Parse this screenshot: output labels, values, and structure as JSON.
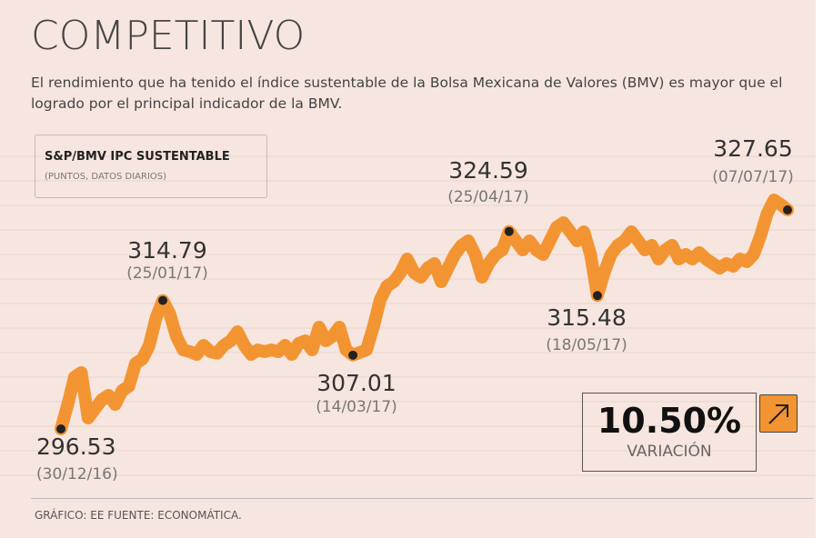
{
  "chart_data": {
    "type": "line",
    "title": "COMPETITIVO",
    "subtitle": "El rendimiento que ha tenido el índice sustentable de la Bolsa Mexicana de Valores (BMV) es mayor que el logrado por el principal indicador de la BMV.",
    "legend_subtitle": "(PUNTOS, DATOS DIARIOS)",
    "series": [
      {
        "name": "S&P/BMV IPC SUSTENTABLE",
        "color": "#f39433",
        "values": [
          296.53,
          300.02,
          303.89,
          304.54,
          298.08,
          299.37,
          300.66,
          301.31,
          300.02,
          301.95,
          302.6,
          305.83,
          306.47,
          308.41,
          312.28,
          314.79,
          312.93,
          309.7,
          307.76,
          307.5,
          307.12,
          308.41,
          307.5,
          307.3,
          308.41,
          309.06,
          310.35,
          308.41,
          307.12,
          307.76,
          307.5,
          307.76,
          307.5,
          308.41,
          307.12,
          308.67,
          309.06,
          307.76,
          310.99,
          309.06,
          309.7,
          310.99,
          307.76,
          307.01,
          307.4,
          307.76,
          310.99,
          314.87,
          316.8,
          317.45,
          318.74,
          320.68,
          318.74,
          318.09,
          319.39,
          320.03,
          317.45,
          319.39,
          321.32,
          322.61,
          323.26,
          321.32,
          318.09,
          320.03,
          321.32,
          321.97,
          324.59,
          323.26,
          321.97,
          323.26,
          321.97,
          321.32,
          323.26,
          325.2,
          325.84,
          324.55,
          323.26,
          324.55,
          321.32,
          315.48,
          318.74,
          321.32,
          322.61,
          323.26,
          324.55,
          323.26,
          321.97,
          322.61,
          320.68,
          321.97,
          322.61,
          320.68,
          321.32,
          320.68,
          321.58,
          320.68,
          320.03,
          319.39,
          320.03,
          319.64,
          320.68,
          320.29,
          321.32,
          323.91,
          327.13,
          329.07,
          328.43,
          327.65
        ]
      }
    ],
    "annotations": [
      {
        "value": 296.53,
        "date": "(30/12/16)"
      },
      {
        "value": 314.79,
        "date": "(25/01/17)"
      },
      {
        "value": 307.01,
        "date": "(14/03/17)"
      },
      {
        "value": 324.59,
        "date": "(25/04/17)"
      },
      {
        "value": 315.48,
        "date": "(18/05/17)"
      },
      {
        "value": 327.65,
        "date": "(07/07/17)"
      }
    ],
    "variation": {
      "value": "10.50%",
      "label": "VARIACIÓN"
    },
    "footer": "GRÁFICO: EE  FUENTE: ECONOMÁTICA."
  }
}
